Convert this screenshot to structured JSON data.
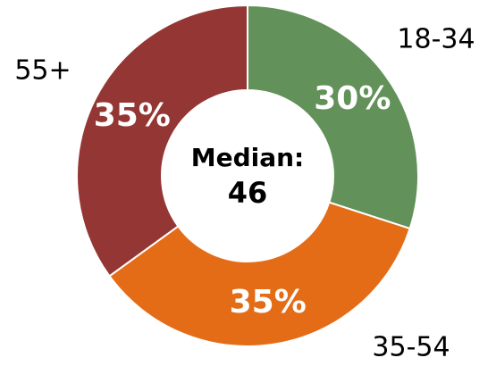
{
  "chart_data": {
    "type": "donut",
    "categories": [
      "18-34",
      "35-54",
      "55+"
    ],
    "values": [
      30,
      35,
      35
    ],
    "value_labels": [
      "30%",
      "35%",
      "35%"
    ],
    "colors": [
      "#629159",
      "#e46c17",
      "#943634"
    ],
    "center_label": "Median:",
    "center_value": 46
  }
}
